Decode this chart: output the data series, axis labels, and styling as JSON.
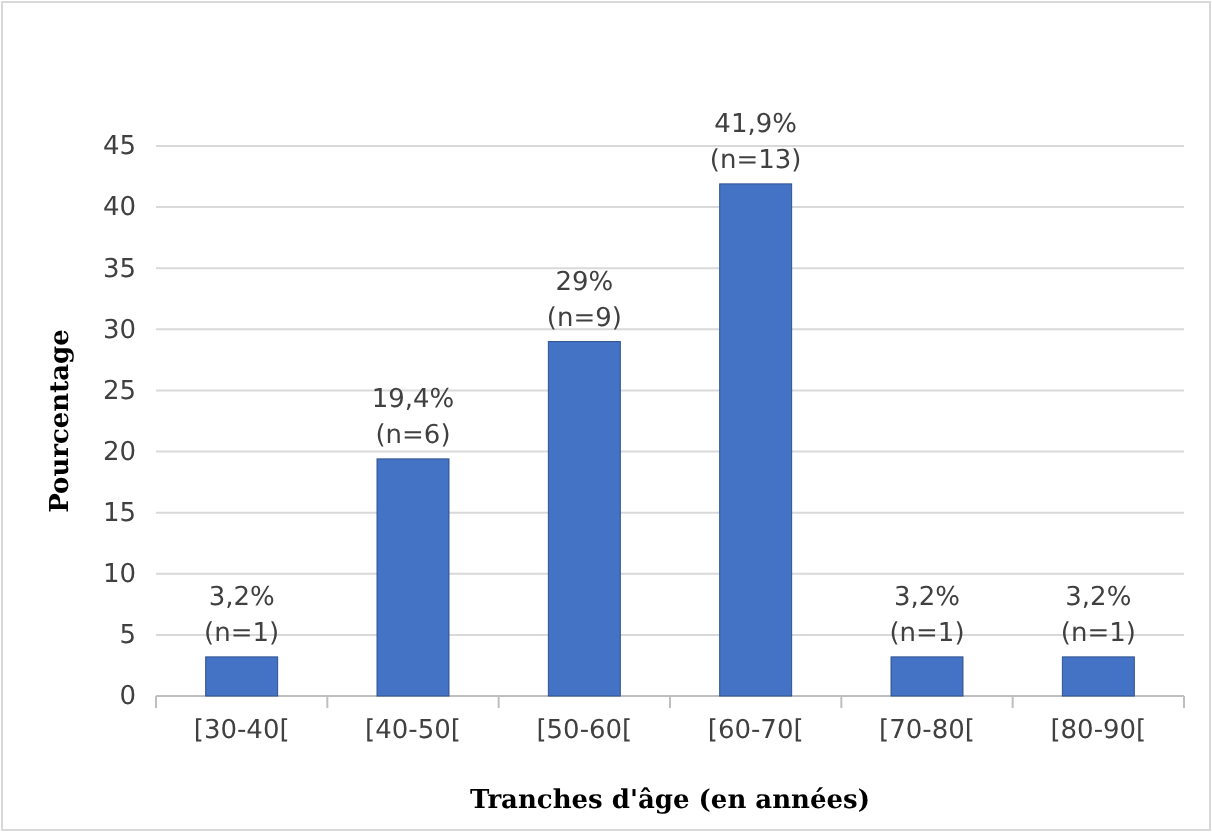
{
  "chart_data": {
    "type": "bar",
    "xlabel": "Tranches d'âge (en années)",
    "ylabel": "Pourcentage",
    "categories": [
      "[30-40[",
      "[40-50[",
      "[50-60[",
      "[60-70[",
      "[70-80[",
      "[80-90["
    ],
    "values": [
      3.2,
      19.4,
      29,
      41.9,
      3.2,
      3.2
    ],
    "color": "#4472c4",
    "value_labels": [
      "3,2%\n(n=1)",
      "19,4%\n(n=6)",
      "29%\n(n=9)",
      "41,9%\n(n=13)",
      "3,2%\n(n=1)",
      "3,2%\n(n=1)"
    ],
    "ylim": [
      0,
      45
    ],
    "yticks": [
      0,
      5,
      10,
      15,
      20,
      25,
      30,
      35,
      40,
      45
    ],
    "grid": "y"
  }
}
